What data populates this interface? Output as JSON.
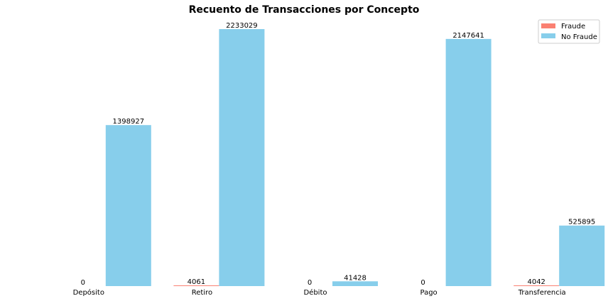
{
  "chart_data": {
    "type": "bar",
    "title": "Recuento de Transacciones por Concepto",
    "xlabel": "",
    "ylabel": "",
    "categories": [
      "Depósito",
      "Retiro",
      "Débito",
      "Pago",
      "Transferencia"
    ],
    "series": [
      {
        "name": "Fraude",
        "color": "#FA8072",
        "values": [
          0,
          4061,
          0,
          0,
          4042
        ]
      },
      {
        "name": "No Fraude",
        "color": "#87CEEB",
        "values": [
          1398927,
          2233029,
          41428,
          2147641,
          525895
        ]
      }
    ],
    "data_labels": {
      "Fraude": [
        "0",
        "4061",
        "0",
        "0",
        "4042"
      ],
      "No Fraude": [
        "1398927",
        "2233029",
        "41428",
        "2147641",
        "525895"
      ]
    },
    "ylim": [
      0,
      2233029
    ],
    "grid": false,
    "legend_position": "top-right"
  }
}
